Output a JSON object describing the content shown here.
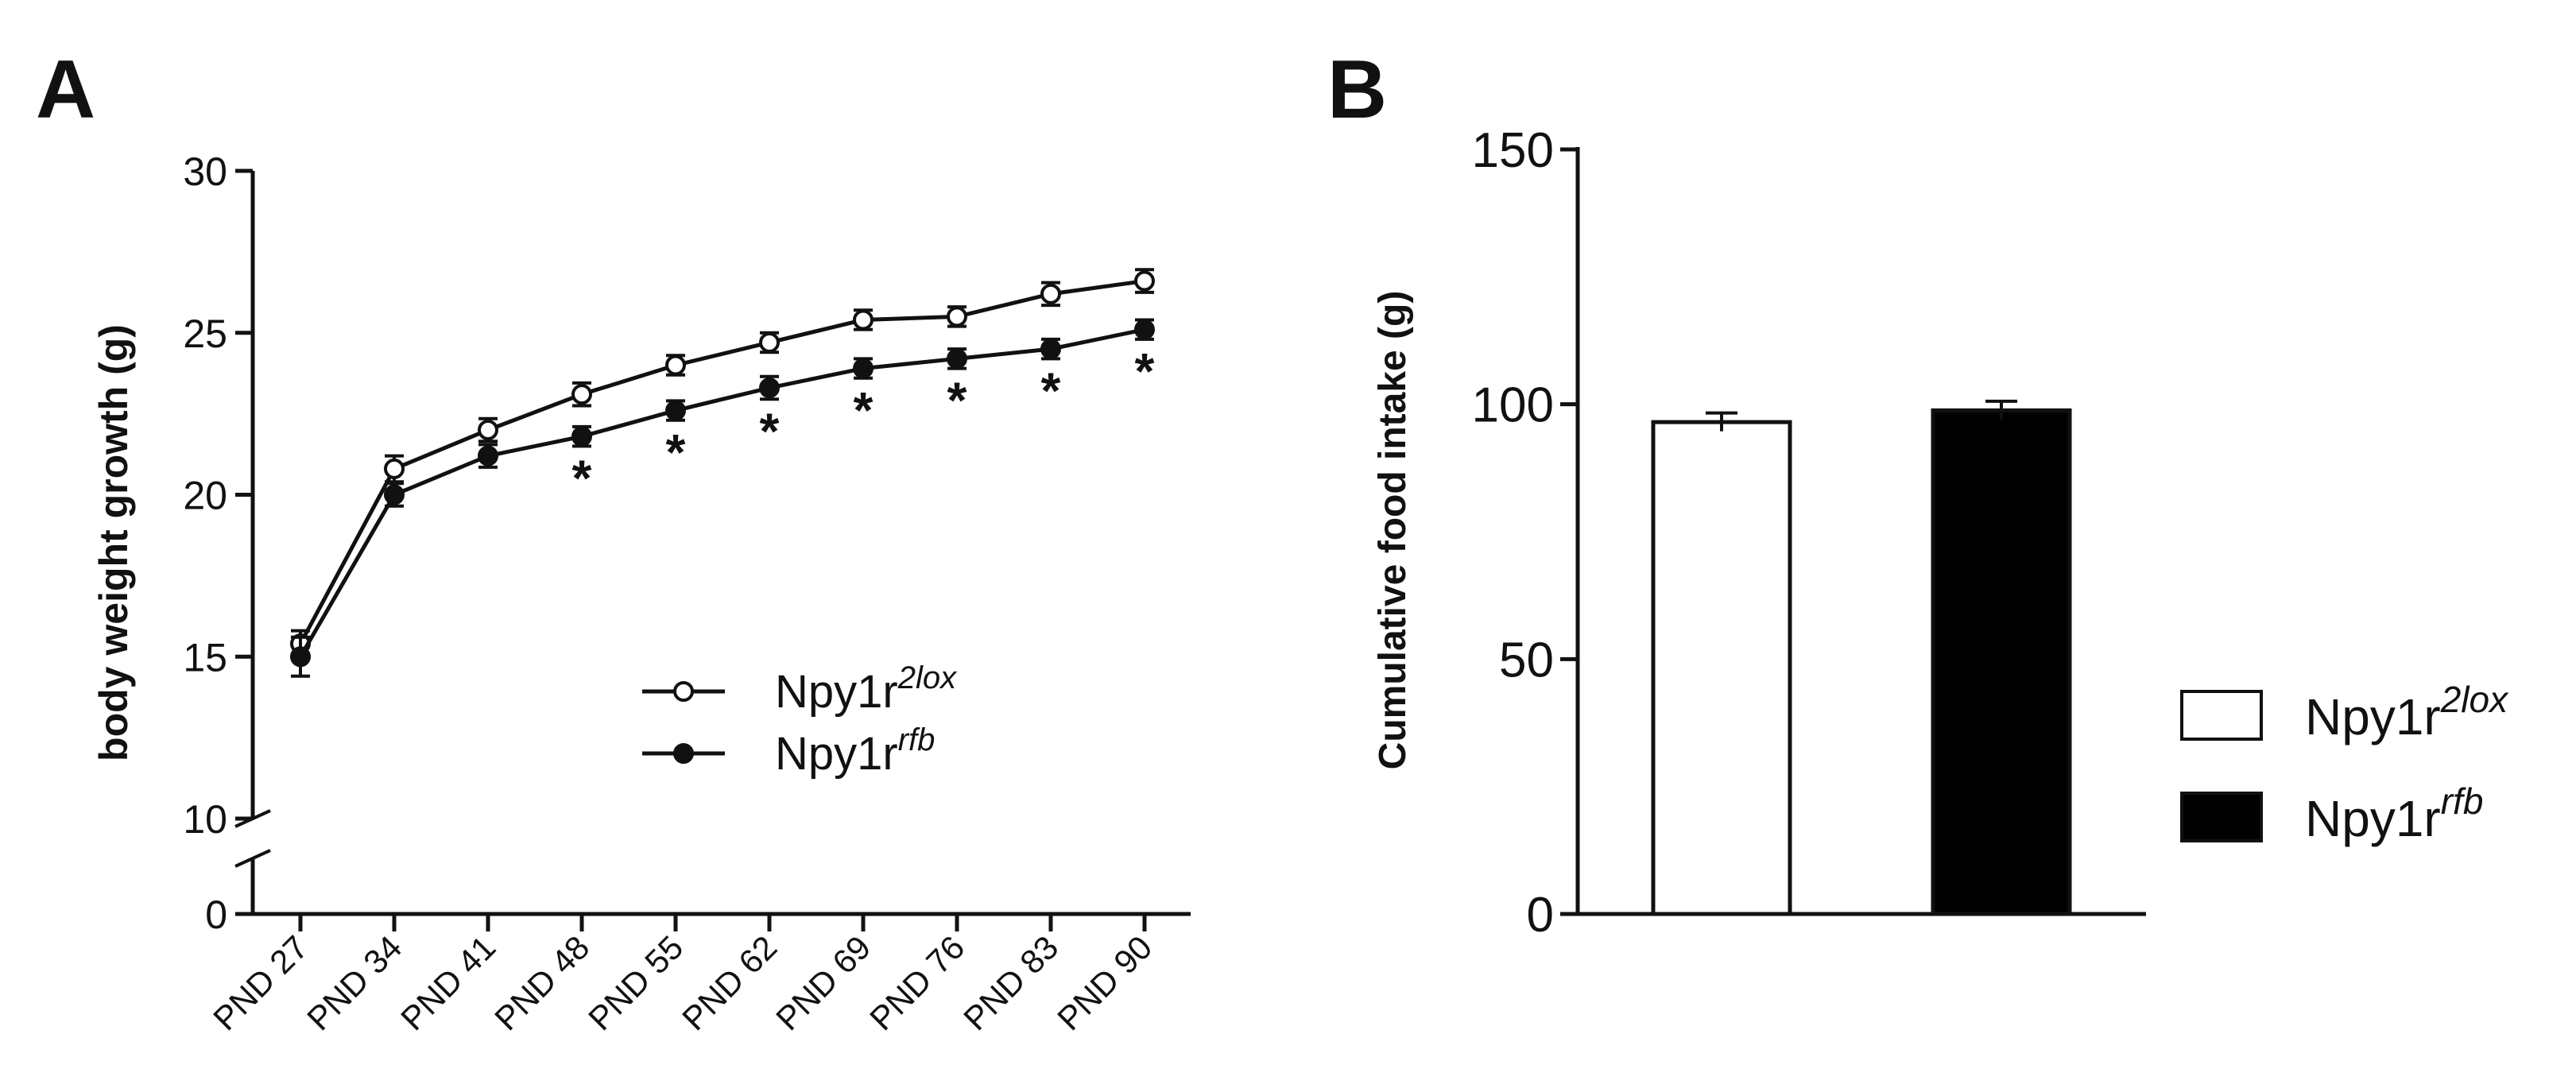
{
  "chart_data": [
    {
      "type": "line",
      "panel": "A",
      "ylabel": "body weight growth (g)",
      "yticks": [
        "30",
        "25",
        "20",
        "15",
        "10",
        "0"
      ],
      "ylim": [
        10,
        30
      ],
      "y_break": true,
      "categories": [
        "PND 27",
        "PND 34",
        "PND 41",
        "PND 48",
        "PND 55",
        "PND 62",
        "PND 69",
        "PND 76",
        "PND 83",
        "PND 90"
      ],
      "series": [
        {
          "name": "Npy1r",
          "sup": "2lox",
          "marker": "open-circle",
          "values": [
            15.4,
            20.8,
            22.0,
            23.1,
            24.0,
            24.7,
            25.4,
            25.5,
            26.2,
            26.6
          ],
          "errors": [
            0.4,
            0.4,
            0.35,
            0.35,
            0.3,
            0.3,
            0.3,
            0.3,
            0.35,
            0.35
          ]
        },
        {
          "name": "Npy1r",
          "sup": "rfb",
          "marker": "filled-circle",
          "values": [
            15.0,
            20.0,
            21.2,
            21.8,
            22.6,
            23.3,
            23.9,
            24.2,
            24.5,
            25.1
          ],
          "errors": [
            0.6,
            0.35,
            0.35,
            0.3,
            0.3,
            0.35,
            0.3,
            0.3,
            0.3,
            0.3
          ]
        }
      ],
      "significance_marker": "*",
      "significant_categories": [
        "PND 48",
        "PND 55",
        "PND 62",
        "PND 69",
        "PND 76",
        "PND 83",
        "PND 90"
      ],
      "legend_position": "lower-right"
    },
    {
      "type": "bar",
      "panel": "B",
      "ylabel": "Cumulative food intake (g)",
      "yticks": [
        "150",
        "100",
        "50",
        "0"
      ],
      "ylim": [
        0,
        150
      ],
      "categories": [
        "Npy1r 2lox",
        "Npy1r rfb"
      ],
      "series": [
        {
          "name": "Npy1r",
          "sup": "2lox",
          "fill": "#ffffff",
          "value": 96.5,
          "error": 1.8
        },
        {
          "name": "Npy1r",
          "sup": "rfb",
          "fill": "#000000",
          "value": 98.8,
          "error": 1.8
        }
      ],
      "legend_position": "right"
    }
  ]
}
